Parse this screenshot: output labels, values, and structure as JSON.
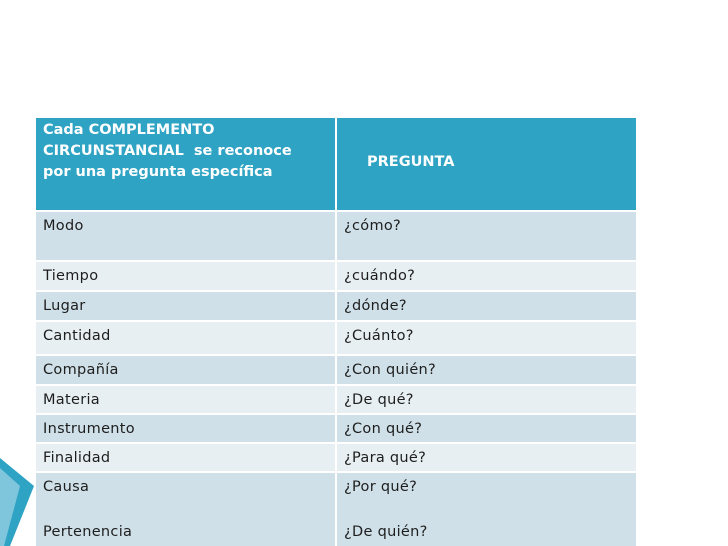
{
  "table": {
    "header": [
      [
        "Cada COMPLEMENTO",
        "CIRCUNSTANCIAL  se reconoce",
        "por una pregunta específica"
      ],
      [
        "PREGUNTA"
      ]
    ],
    "rows": [
      [
        [
          "Modo"
        ],
        [
          "¿cómo?"
        ]
      ],
      [
        [
          "Tiempo"
        ],
        [
          "¿cuándo?"
        ]
      ],
      [
        [
          "Lugar"
        ],
        [
          "¿dónde?"
        ]
      ],
      [
        [
          "Cantidad"
        ],
        [
          "¿Cuánto?"
        ]
      ],
      [
        [
          "Compañía"
        ],
        [
          "¿Con quién?"
        ]
      ],
      [
        [
          "Materia"
        ],
        [
          "¿De qué?"
        ]
      ],
      [
        [
          "Instrumento"
        ],
        [
          "¿Con qué?"
        ]
      ],
      [
        [
          "Finalidad"
        ],
        [
          "¿Para qué?"
        ]
      ],
      [
        [
          "Causa",
          "Pertenencia"
        ],
        [
          "¿Por qué?",
          "¿De quién?"
        ]
      ]
    ]
  }
}
